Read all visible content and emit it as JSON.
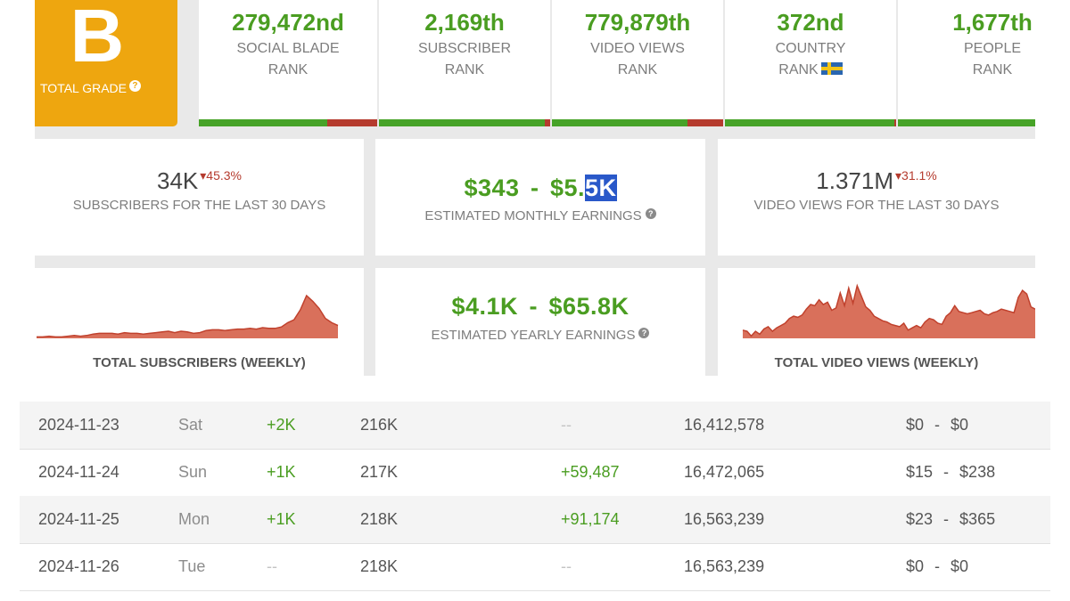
{
  "grade": {
    "letter": "B",
    "label": "TOTAL GRADE",
    "help": "?",
    "color": "#eea60f"
  },
  "ranks": [
    {
      "value": "279,472nd",
      "line1": "SOCIAL BLADE",
      "line2": "RANK",
      "percentile": 0.72
    },
    {
      "value": "2,169th",
      "line1": "SUBSCRIBER",
      "line2": "RANK",
      "percentile": 0.97
    },
    {
      "value": "779,879th",
      "line1": "VIDEO VIEWS",
      "line2": "RANK",
      "percentile": 0.79
    },
    {
      "value": "372nd",
      "line1": "COUNTRY",
      "line2": "RANK",
      "percentile": 0.99,
      "flag": "sweden-flag-icon"
    },
    {
      "value": "1,677th",
      "line1": "PEOPLE",
      "line2": "RANK",
      "percentile": 1.0
    }
  ],
  "stats": {
    "subscribers": {
      "value": "34K",
      "delta": "45.3%",
      "caption": "SUBSCRIBERS FOR THE LAST 30 DAYS"
    },
    "monthly": {
      "low": "$343",
      "sep": "-",
      "high_a": "$5.",
      "high_b": "5K",
      "caption": "ESTIMATED MONTHLY EARNINGS",
      "help": "?"
    },
    "views": {
      "value": "1.371M",
      "delta": "31.1%",
      "caption": "VIDEO VIEWS FOR THE LAST 30 DAYS"
    },
    "yearly": {
      "low": "$4.1K",
      "sep": "-",
      "high": "$65.8K",
      "caption": "ESTIMATED YEARLY EARNINGS",
      "help": "?"
    }
  },
  "colors": {
    "green": "#4a9d21",
    "red": "#b53b2e",
    "chart_fill": "#d9705b",
    "chart_line": "#c0412d"
  },
  "charts": {
    "subscribers": {
      "title": "TOTAL SUBSCRIBERS (WEEKLY)",
      "values": [
        2,
        2,
        3,
        2,
        2,
        3,
        4,
        3,
        4,
        6,
        7,
        7,
        7,
        6,
        8,
        7,
        7,
        6,
        7,
        8,
        9,
        10,
        8,
        10,
        9,
        7,
        8,
        11,
        12,
        12,
        11,
        12,
        13,
        13,
        14,
        13,
        15,
        14,
        14,
        16,
        22,
        26,
        40,
        60,
        52,
        42,
        28,
        22,
        18
      ]
    },
    "views": {
      "title": "TOTAL VIDEO VIEWS (WEEKLY)",
      "values": [
        14,
        12,
        4,
        12,
        7,
        16,
        20,
        12,
        18,
        22,
        26,
        34,
        38,
        36,
        40,
        50,
        58,
        56,
        66,
        58,
        62,
        48,
        52,
        78,
        56,
        86,
        60,
        90,
        72,
        54,
        48,
        38,
        34,
        30,
        28,
        24,
        22,
        20,
        26,
        14,
        18,
        22,
        18,
        28,
        34,
        32,
        26,
        24,
        38,
        44,
        56,
        46,
        44,
        42,
        44,
        46,
        48,
        42,
        40,
        44,
        46,
        50,
        48,
        46,
        44,
        70,
        82,
        76,
        54,
        50
      ]
    }
  },
  "table": {
    "rows": [
      {
        "date": "2024-11-23",
        "day": "Sat",
        "sub_change": "+2K",
        "subs": "216K",
        "view_change": "--",
        "views": "16,412,578",
        "earn_low": "$0",
        "earn_sep": "-",
        "earn_high": "$0"
      },
      {
        "date": "2024-11-24",
        "day": "Sun",
        "sub_change": "+1K",
        "subs": "217K",
        "view_change": "+59,487",
        "views": "16,472,065",
        "earn_low": "$15",
        "earn_sep": "-",
        "earn_high": "$238"
      },
      {
        "date": "2024-11-25",
        "day": "Mon",
        "sub_change": "+1K",
        "subs": "218K",
        "view_change": "+91,174",
        "views": "16,563,239",
        "earn_low": "$23",
        "earn_sep": "-",
        "earn_high": "$365"
      },
      {
        "date": "2024-11-26",
        "day": "Tue",
        "sub_change": "--",
        "subs": "218K",
        "view_change": "--",
        "views": "16,563,239",
        "earn_low": "$0",
        "earn_sep": "-",
        "earn_high": "$0"
      }
    ]
  }
}
